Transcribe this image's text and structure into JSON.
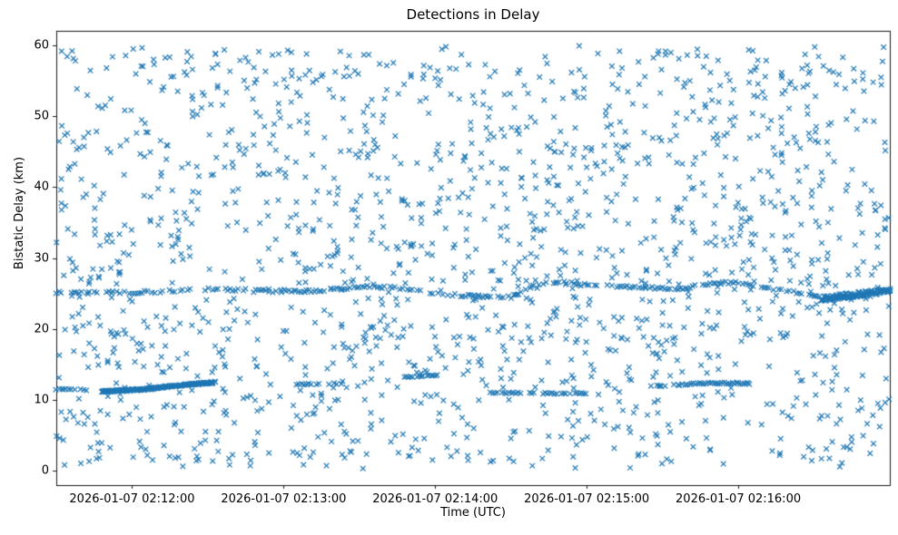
{
  "chart_data": {
    "type": "scatter",
    "title": "Detections in Delay",
    "xlabel": "Time (UTC)",
    "ylabel": "Bistatic Delay (km)",
    "marker": "x",
    "marker_color": "#1f77b4",
    "grid": false,
    "legend": "none",
    "x_axis": {
      "tick_labels": [
        "2026-01-07 02:12:00",
        "2026-01-07 02:13:00",
        "2026-01-07 02:14:00",
        "2026-01-07 02:15:00",
        "2026-01-07 02:16:00"
      ],
      "tick_offsets_s": [
        30,
        90,
        150,
        210,
        270
      ],
      "range_s": [
        0,
        330
      ],
      "start_time": "2026-01-07 02:11:30",
      "end_time": "2026-01-07 02:17:00"
    },
    "y_axis": {
      "ticks": [
        0,
        10,
        20,
        30,
        40,
        50,
        60
      ],
      "range": [
        -2,
        62
      ]
    },
    "clutter": {
      "description": "uniformly distributed random clutter detections across full time and delay extent",
      "count": 1700,
      "t_range_s": [
        0,
        330
      ],
      "y_range_km": [
        0.3,
        60.0
      ],
      "seed": 987654321
    },
    "tracks": [
      {
        "name": "target-track-25km",
        "control_points": [
          [
            0,
            25.2
          ],
          [
            30,
            25.1
          ],
          [
            60,
            25.6
          ],
          [
            90,
            25.4
          ],
          [
            105,
            25.3
          ],
          [
            120,
            26.0
          ],
          [
            135,
            25.8
          ],
          [
            150,
            25.0
          ],
          [
            165,
            24.6
          ],
          [
            180,
            24.5
          ],
          [
            190,
            26.3
          ],
          [
            200,
            26.6
          ],
          [
            215,
            26.2
          ],
          [
            230,
            25.9
          ],
          [
            245,
            25.6
          ],
          [
            260,
            26.4
          ],
          [
            270,
            26.6
          ],
          [
            285,
            25.6
          ],
          [
            295,
            25.0
          ],
          [
            310,
            24.4
          ],
          [
            320,
            24.8
          ],
          [
            330,
            25.4
          ]
        ],
        "step_s": 1.0,
        "jitter_km": 0.18,
        "dropout": 0.25,
        "layers": 1
      },
      {
        "name": "dense-blob-right-25km",
        "control_points": [
          [
            303,
            24.2
          ],
          [
            315,
            24.8
          ],
          [
            325,
            25.2
          ],
          [
            330,
            25.5
          ]
        ],
        "step_s": 0.5,
        "jitter_km": 0.35,
        "dropout": 0.1,
        "layers": 2
      },
      {
        "name": "low-track-left-11km",
        "control_points": [
          [
            0,
            11.5
          ],
          [
            12,
            11.4
          ]
        ],
        "step_s": 1.2,
        "jitter_km": 0.1,
        "dropout": 0.3,
        "layers": 1
      },
      {
        "name": "rising-streak-11-12.5km",
        "control_points": [
          [
            18,
            11.2
          ],
          [
            35,
            11.5
          ],
          [
            50,
            12.1
          ],
          [
            63,
            12.5
          ]
        ],
        "step_s": 0.4,
        "jitter_km": 0.12,
        "dropout": 0.1,
        "layers": 2
      },
      {
        "name": "segment-12.3km",
        "control_points": [
          [
            95,
            12.2
          ],
          [
            113,
            12.3
          ]
        ],
        "step_s": 1.0,
        "jitter_km": 0.1,
        "dropout": 0.3,
        "layers": 1
      },
      {
        "name": "segment-13.4km",
        "control_points": [
          [
            138,
            13.2
          ],
          [
            152,
            13.5
          ]
        ],
        "step_s": 0.8,
        "jitter_km": 0.1,
        "dropout": 0.2,
        "layers": 1
      },
      {
        "name": "segment-11km",
        "control_points": [
          [
            172,
            11.0
          ],
          [
            210,
            10.9
          ]
        ],
        "step_s": 0.9,
        "jitter_km": 0.1,
        "dropout": 0.25,
        "layers": 1
      },
      {
        "name": "segment-12.2km",
        "control_points": [
          [
            238,
            12.0
          ],
          [
            258,
            12.4
          ],
          [
            276,
            12.3
          ]
        ],
        "step_s": 0.8,
        "jitter_km": 0.12,
        "dropout": 0.2,
        "layers": 1
      }
    ]
  }
}
